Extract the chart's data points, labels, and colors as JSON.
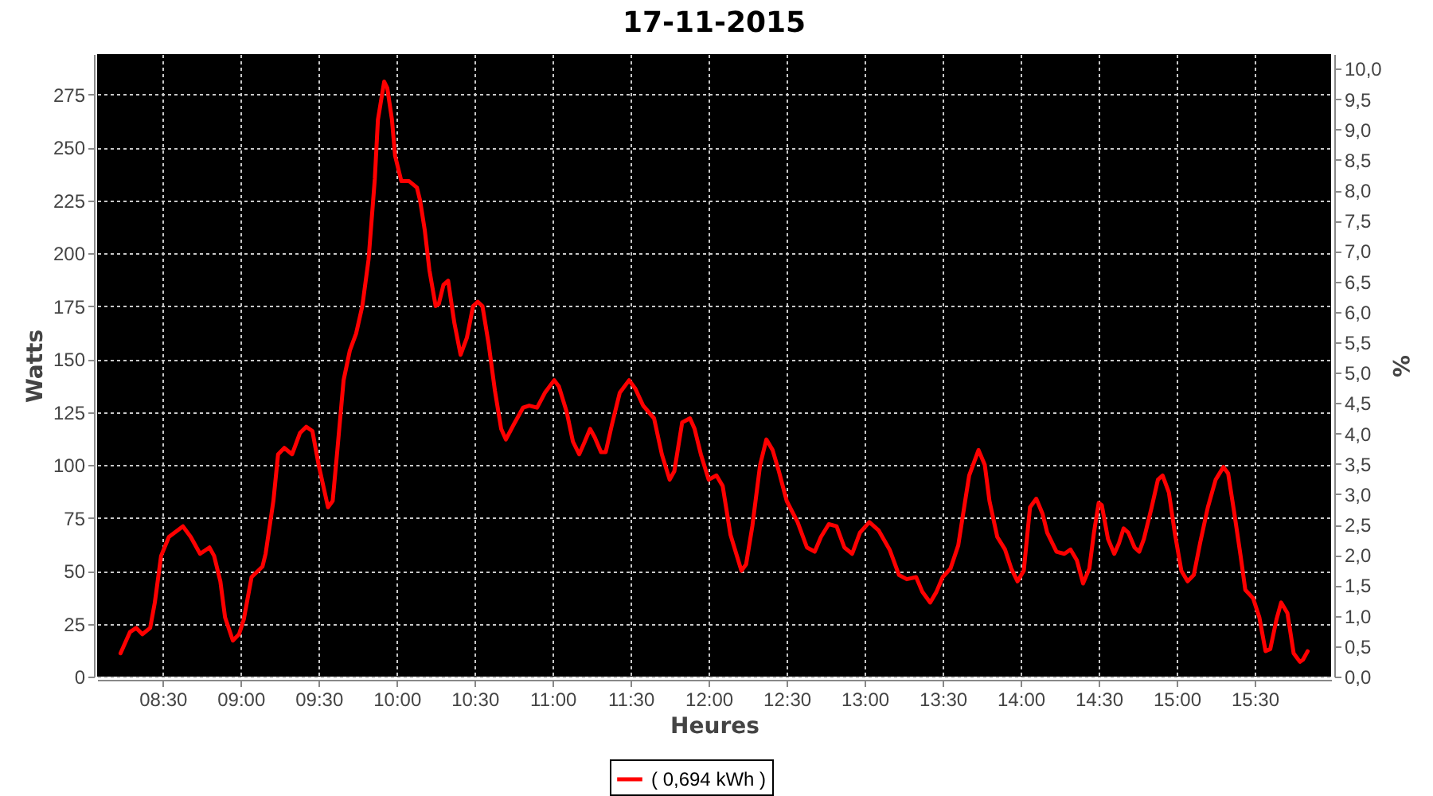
{
  "chart_data": {
    "type": "line",
    "title": "17-11-2015",
    "xlabel": "Heures",
    "ylabel": "Watts",
    "y2label": "%",
    "x": [
      8.23,
      8.29,
      8.33,
      8.37,
      8.42,
      8.45,
      8.49,
      8.54,
      8.63,
      8.68,
      8.74,
      8.8,
      8.83,
      8.87,
      8.9,
      8.95,
      8.99,
      9.02,
      9.07,
      9.14,
      9.16,
      9.21,
      9.24,
      9.28,
      9.33,
      9.38,
      9.42,
      9.46,
      9.5,
      9.56,
      9.59,
      9.62,
      9.66,
      9.7,
      9.74,
      9.78,
      9.82,
      9.86,
      9.88,
      9.92,
      9.94,
      9.97,
      9.99,
      10.03,
      10.08,
      10.13,
      10.15,
      10.18,
      10.21,
      10.25,
      10.27,
      10.3,
      10.33,
      10.37,
      10.41,
      10.45,
      10.49,
      10.52,
      10.55,
      10.59,
      10.63,
      10.67,
      10.7,
      10.75,
      10.81,
      10.85,
      10.9,
      10.95,
      11.01,
      11.04,
      11.09,
      11.13,
      11.17,
      11.2,
      11.24,
      11.27,
      11.31,
      11.34,
      11.38,
      11.43,
      11.49,
      11.53,
      11.58,
      11.65,
      11.7,
      11.75,
      11.78,
      11.83,
      11.88,
      11.91,
      11.95,
      12.0,
      12.05,
      12.09,
      12.14,
      12.21,
      12.24,
      12.28,
      12.33,
      12.37,
      12.41,
      12.45,
      12.5,
      12.57,
      12.63,
      12.68,
      12.72,
      12.77,
      12.82,
      12.87,
      12.92,
      12.97,
      13.03,
      13.09,
      13.16,
      13.22,
      13.27,
      13.33,
      13.37,
      13.42,
      13.46,
      13.5,
      13.55,
      13.6,
      13.64,
      13.67,
      13.73,
      13.77,
      13.8,
      13.85,
      13.9,
      13.94,
      13.98,
      14.02,
      14.06,
      14.1,
      14.14,
      14.17,
      14.23,
      14.28,
      14.32,
      14.36,
      14.4,
      14.44,
      14.47,
      14.5,
      14.52,
      14.56,
      14.6,
      14.63,
      14.66,
      14.69,
      14.73,
      14.76,
      14.79,
      14.84,
      14.88,
      14.91,
      14.95,
      14.99,
      15.03,
      15.07,
      15.11,
      15.15,
      15.2,
      15.25,
      15.3,
      15.33,
      15.37,
      15.41,
      15.44,
      15.49,
      15.53,
      15.57,
      15.6,
      15.64,
      15.67,
      15.71,
      15.75,
      15.79,
      15.81,
      15.84
    ],
    "series": [
      {
        "name": "( 0,694 kWh )",
        "color": "#ff0000",
        "values": [
          11,
          21,
          23,
          20,
          23,
          35,
          57,
          66,
          71,
          66,
          58,
          61,
          57,
          45,
          28,
          17,
          20,
          27,
          47,
          52,
          58,
          83,
          105,
          108,
          105,
          115,
          118,
          116,
          100,
          80,
          83,
          107,
          140,
          154,
          162,
          175,
          197,
          235,
          263,
          281,
          278,
          263,
          246,
          234,
          234,
          231,
          225,
          211,
          192,
          175,
          176,
          185,
          187,
          167,
          152,
          160,
          175,
          177,
          175,
          157,
          135,
          117,
          112,
          119,
          127,
          128,
          127,
          134,
          140,
          137,
          125,
          111,
          105,
          110,
          117,
          113,
          106,
          106,
          119,
          134,
          140,
          136,
          128,
          122,
          105,
          93,
          97,
          120,
          122,
          117,
          105,
          93,
          95,
          90,
          67,
          50,
          53,
          71,
          100,
          112,
          107,
          97,
          83,
          73,
          61,
          59,
          66,
          72,
          71,
          61,
          58,
          68,
          73,
          69,
          60,
          48,
          46,
          47,
          40,
          35,
          40,
          47,
          51,
          62,
          81,
          95,
          107,
          100,
          83,
          66,
          60,
          51,
          45,
          50,
          80,
          84,
          77,
          68,
          59,
          58,
          60,
          55,
          44,
          51,
          68,
          82,
          81,
          65,
          58,
          63,
          70,
          68,
          61,
          59,
          65,
          80,
          93,
          95,
          87,
          67,
          50,
          45,
          48,
          63,
          80,
          93,
          99,
          96,
          77,
          57,
          41,
          37,
          28,
          12,
          13,
          27,
          35,
          30,
          11,
          7,
          8,
          12
        ]
      }
    ],
    "xlim": [
      8.08,
      15.99
    ],
    "xticks": [
      {
        "value": 8.5,
        "label": "08:30"
      },
      {
        "value": 9,
        "label": "09:00"
      },
      {
        "value": 9.5,
        "label": "09:30"
      },
      {
        "value": 10,
        "label": "10:00"
      },
      {
        "value": 10.5,
        "label": "10:30"
      },
      {
        "value": 11,
        "label": "11:00"
      },
      {
        "value": 11.5,
        "label": "11:30"
      },
      {
        "value": 12,
        "label": "12:00"
      },
      {
        "value": 12.5,
        "label": "12:30"
      },
      {
        "value": 13,
        "label": "13:00"
      },
      {
        "value": 13.5,
        "label": "13:30"
      },
      {
        "value": 14,
        "label": "14:00"
      },
      {
        "value": 14.5,
        "label": "14:30"
      },
      {
        "value": 15,
        "label": "15:00"
      },
      {
        "value": 15.5,
        "label": "15:30"
      }
    ],
    "ylim": [
      0,
      294
    ],
    "yticks": [
      0,
      25,
      50,
      75,
      100,
      125,
      150,
      175,
      200,
      225,
      250,
      275
    ],
    "y2lim": [
      0,
      10.24
    ],
    "y2ticks": [
      {
        "value": 0,
        "label": "0,0"
      },
      {
        "value": 0.5,
        "label": "0,5"
      },
      {
        "value": 1,
        "label": "1,0"
      },
      {
        "value": 1.5,
        "label": "1,5"
      },
      {
        "value": 2,
        "label": "2,0"
      },
      {
        "value": 2.5,
        "label": "2,5"
      },
      {
        "value": 3,
        "label": "3,0"
      },
      {
        "value": 3.5,
        "label": "3,5"
      },
      {
        "value": 4,
        "label": "4,0"
      },
      {
        "value": 4.5,
        "label": "4,5"
      },
      {
        "value": 5,
        "label": "5,0"
      },
      {
        "value": 5.5,
        "label": "5,5"
      },
      {
        "value": 6,
        "label": "6,0"
      },
      {
        "value": 6.5,
        "label": "6,5"
      },
      {
        "value": 7,
        "label": "7,0"
      },
      {
        "value": 7.5,
        "label": "7,5"
      },
      {
        "value": 8,
        "label": "8,0"
      },
      {
        "value": 8.5,
        "label": "8,5"
      },
      {
        "value": 9,
        "label": "9,0"
      },
      {
        "value": 9.5,
        "label": "9,5"
      },
      {
        "value": 10,
        "label": "10,0"
      }
    ],
    "grid": true,
    "legend": "bottom",
    "line_style": "solid"
  }
}
